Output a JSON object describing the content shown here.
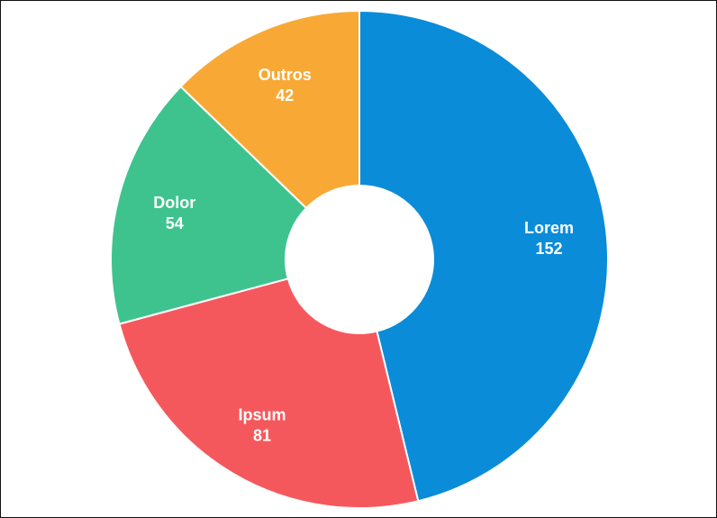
{
  "chart_data": {
    "type": "pie",
    "donut": true,
    "slices": [
      {
        "label": "Lorem",
        "value": 152,
        "color": "#0A8CD9"
      },
      {
        "label": "Ipsum",
        "value": 81,
        "color": "#F5585C"
      },
      {
        "label": "Dolor",
        "value": 54,
        "color": "#3EC38F"
      },
      {
        "label": "Outros",
        "value": 42,
        "color": "#F8A935"
      }
    ],
    "start_angle_deg": 0,
    "direction": "clockwise",
    "slice_border_color": "#FFFFFF",
    "label_color": "#FFFFFF"
  }
}
